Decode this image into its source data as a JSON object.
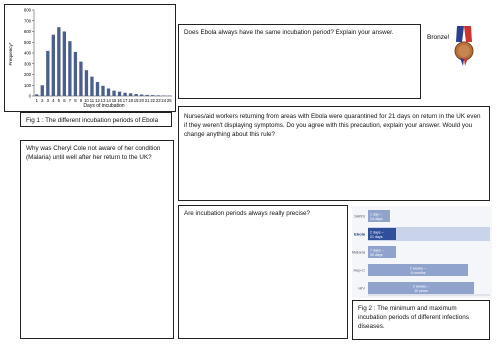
{
  "fig1_chart": {
    "type": "bar",
    "y_label": "Frequency*",
    "x_label": "Days of incubation",
    "categories": [
      "1",
      "2",
      "3",
      "4",
      "5",
      "6",
      "7",
      "8",
      "9",
      "10",
      "11",
      "12",
      "13",
      "14",
      "15",
      "16",
      "17",
      "18",
      "19",
      "20",
      "21",
      "22",
      "23",
      "24",
      "25"
    ],
    "values": [
      15,
      100,
      420,
      570,
      640,
      600,
      510,
      410,
      320,
      240,
      180,
      130,
      95,
      70,
      50,
      40,
      30,
      25,
      18,
      14,
      10,
      8,
      6,
      4,
      3
    ],
    "color": "#4a5f8c",
    "ylim": [
      0,
      800
    ],
    "yticks": [
      0,
      100,
      200,
      300,
      400,
      500,
      600,
      700,
      800
    ]
  },
  "fig1_caption": "Fig 1 : The different incubation periods of Ebola",
  "questions": [
    "Does Ebola always have the same incubation period? Explain your answer.",
    "Nurses/aid workers returning from areas with Ebola were quarantined for 21 days on return in the UK even if they weren't displaying symptoms. Do you agree with this precaution, explain your answer. Would you change anything about this rule?",
    "Why was Cheryl Cole not aware of her condition (Malaria) until well after her return to the UK?",
    "Are incubation periods always really precise?"
  ],
  "badge": "Bronze!",
  "fig2_rows": [
    {
      "name": "SARS",
      "min": "1 day –",
      "max": "14 days"
    },
    {
      "name": "Ebola",
      "min": "2 days –",
      "max": "21 days"
    },
    {
      "name": "Malaria",
      "min": "7 days –",
      "max": "30 days"
    },
    {
      "name": "Hep-C",
      "min": "2 weeks –",
      "max": "6 months"
    },
    {
      "name": "HIV",
      "min": "2 weeks –",
      "max": "10 years"
    }
  ],
  "fig2_caption": "Fig 2 : The minimum and maximum incubation periods of different infections diseases."
}
